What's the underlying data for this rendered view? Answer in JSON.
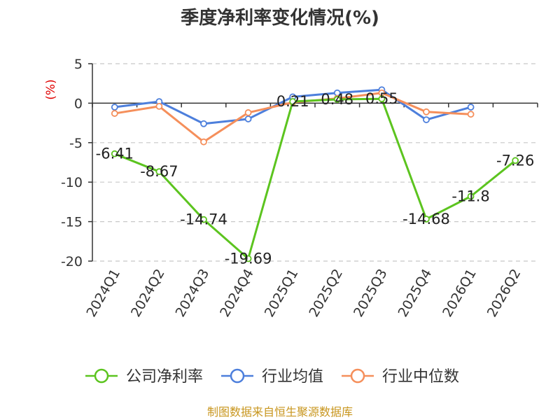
{
  "chart_data": {
    "type": "line",
    "title": "季度净利率变化情况(%)",
    "ylabel": "(%)",
    "categories": [
      "2024Q1",
      "2024Q2",
      "2024Q3",
      "2024Q4",
      "2025Q1",
      "2025Q2",
      "2025Q3",
      "2025Q4",
      "2026Q1",
      "2026Q2"
    ],
    "ylim": [
      -20,
      5
    ],
    "yticks": [
      5,
      0,
      -5,
      -10,
      -15,
      -20
    ],
    "grid": true,
    "legend_position": "bottom",
    "series": [
      {
        "name": "公司净利率",
        "color": "#5cc41f",
        "values": [
          -6.41,
          -8.67,
          -14.74,
          -19.69,
          0.21,
          0.48,
          0.55,
          -14.68,
          -11.8,
          -7.26
        ],
        "labels": [
          "-6.41",
          "-8.67",
          "-14.74",
          "-19.69",
          "0.21",
          "0.48",
          "0.55",
          "-14.68",
          "-11.8",
          "-7.26"
        ]
      },
      {
        "name": "行业均值",
        "color": "#4d7fdc",
        "values": [
          -0.5,
          0.2,
          -2.6,
          -2.0,
          0.8,
          1.3,
          1.7,
          -2.1,
          -0.5,
          null
        ]
      },
      {
        "name": "行业中位数",
        "color": "#f58f5b",
        "values": [
          -1.3,
          -0.4,
          -4.9,
          -1.2,
          0.1,
          0.6,
          1.3,
          -1.1,
          -1.4,
          null
        ]
      }
    ]
  },
  "source": "制图数据来自恒生聚源数据库"
}
